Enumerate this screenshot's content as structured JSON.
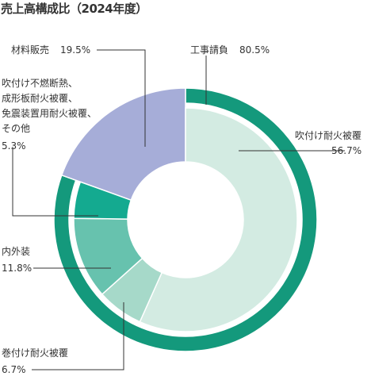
{
  "title": "売上高構成比（2024年度）",
  "chart_data": {
    "type": "pie",
    "subtype": "two-level donut",
    "title": "売上高構成比（2024年度）",
    "outer": [
      {
        "label": "工事請負",
        "value": 80.5,
        "display": "80.5%",
        "color": "#14997c"
      },
      {
        "label": "材料販売",
        "value": 19.5,
        "display": "19.5%",
        "color": "#a6add8"
      }
    ],
    "inner": [
      {
        "label": "吹付け耐火被覆",
        "value": 56.7,
        "display": "56.7%",
        "color": "#d3ebe2",
        "parent": "工事請負"
      },
      {
        "label": "巻付け耐火被覆",
        "value": 6.7,
        "display": "6.7%",
        "color": "#a6d9c9",
        "parent": "工事請負"
      },
      {
        "label": "内外装",
        "value": 11.8,
        "display": "11.8%",
        "color": "#67c2ae",
        "parent": "工事請負"
      },
      {
        "label": "吹付け不燃断熱、成形板耐火被覆、免震装置用耐火被覆、その他",
        "lines": [
          "吹付け不燃断熱、",
          "成形板耐火被覆、",
          "免震装置用耐火被覆、",
          "その他"
        ],
        "value": 5.3,
        "display": "5.3%",
        "color": "#14aa90",
        "parent": "工事請負"
      }
    ],
    "inner_gap": {
      "label": "材料販売",
      "value": 19.5,
      "color": "#a6add8"
    }
  }
}
